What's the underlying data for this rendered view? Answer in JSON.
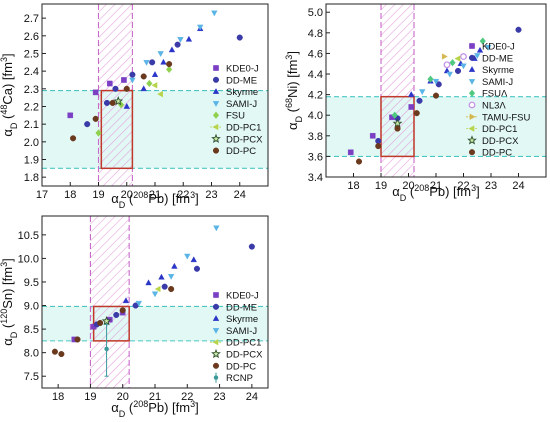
{
  "figure": {
    "description_visible": ""
  },
  "colors": {
    "KDE0-J": "#7b3fc4",
    "DD-ME": "#3a3aa8",
    "Skyrme": "#2b36c8",
    "SAMI-J": "#5ab4e6",
    "FSU": "#8fd14f",
    "FSUΛ": "#4fc97f",
    "NL3Λ": "#c48ae8",
    "TAMU-FSU": "#d4b84f",
    "DD-PC1": "#b8d44a",
    "DD-PCX": "#2f6b2f",
    "DD-PC": "#6b3a1e",
    "RCNP": "#3a9a9a",
    "band_fill": "#c8f2ec",
    "band_line": "#49c7c2",
    "hatch": "#e39bd8",
    "box": "#c0392b"
  },
  "chart_data": [
    {
      "id": "ca48",
      "type": "scatter",
      "xlabel": "α_D (208Pb) [fm³]",
      "ylabel": "α_D (48Ca) [fm³]",
      "xlim": [
        17,
        25
      ],
      "ylim": [
        1.75,
        2.78
      ],
      "xticks": [
        "17",
        "18",
        "19",
        "20",
        "21",
        "22",
        "23",
        "24"
      ],
      "yticks": [
        "1.8",
        "1.9",
        "2.0",
        "2.1",
        "2.2",
        "2.3",
        "2.4",
        "2.5",
        "2.6",
        "2.7"
      ],
      "band_y": [
        1.85,
        2.29
      ],
      "band_x": [
        19.0,
        20.2
      ],
      "box": {
        "x": [
          19.1,
          20.2
        ],
        "y": [
          1.85,
          2.29
        ]
      },
      "series": [
        {
          "name": "KDE0-J",
          "marker": "square",
          "points": [
            [
              18.0,
              2.15
            ],
            [
              18.9,
              2.28
            ],
            [
              19.4,
              2.33
            ],
            [
              19.9,
              2.35
            ]
          ]
        },
        {
          "name": "DD-ME",
          "marker": "circle",
          "points": [
            [
              18.6,
              2.1
            ],
            [
              19.3,
              2.22
            ],
            [
              19.6,
              2.3
            ],
            [
              20.2,
              2.38
            ],
            [
              20.9,
              2.45
            ],
            [
              21.8,
              2.55
            ],
            [
              24.0,
              2.59
            ]
          ]
        },
        {
          "name": "Skyrme",
          "marker": "triangle-up",
          "points": [
            [
              20.0,
              2.2
            ],
            [
              20.6,
              2.3
            ],
            [
              21.0,
              2.38
            ],
            [
              21.3,
              2.45
            ],
            [
              21.6,
              2.52
            ],
            [
              22.2,
              2.58
            ],
            [
              22.6,
              2.64
            ]
          ]
        },
        {
          "name": "SAMI-J",
          "marker": "triangle-down",
          "points": [
            [
              20.2,
              2.35
            ],
            [
              20.7,
              2.45
            ],
            [
              21.2,
              2.5
            ],
            [
              21.9,
              2.58
            ],
            [
              22.6,
              2.65
            ],
            [
              23.1,
              2.73
            ]
          ]
        },
        {
          "name": "FSU",
          "marker": "diamond",
          "points": [
            [
              19.0,
              2.05
            ],
            [
              19.8,
              2.21
            ],
            [
              20.8,
              2.33
            ],
            [
              21.5,
              2.41
            ]
          ]
        },
        {
          "name": "DD-PC1",
          "marker": "triangle-left",
          "points": [
            [
              21.2,
              2.27
            ],
            [
              21.0,
              2.32
            ]
          ]
        },
        {
          "name": "DD-PCX",
          "marker": "star",
          "points": [
            [
              19.7,
              2.23
            ]
          ]
        },
        {
          "name": "DD-PC",
          "marker": "circle",
          "points": [
            [
              18.1,
              2.02
            ],
            [
              18.9,
              2.13
            ],
            [
              19.5,
              2.22
            ],
            [
              20.0,
              2.3
            ],
            [
              20.6,
              2.37
            ],
            [
              21.5,
              2.44
            ]
          ]
        }
      ]
    },
    {
      "id": "ni68",
      "type": "scatter",
      "xlabel": "α_D (208Pb) [fm³]",
      "ylabel": "α_D (68Ni) [fm³]",
      "xlim": [
        17,
        25
      ],
      "ylim": [
        3.4,
        5.08
      ],
      "xticks": [
        "18",
        "19",
        "20",
        "21",
        "22",
        "23",
        "24"
      ],
      "yticks": [
        "3.4",
        "3.6",
        "3.8",
        "4.0",
        "4.2",
        "4.4",
        "4.6",
        "4.8",
        "5.0"
      ],
      "band_y": [
        3.6,
        4.18
      ],
      "band_x": [
        19.0,
        20.2
      ],
      "box": {
        "x": [
          19.0,
          20.2
        ],
        "y": [
          3.6,
          4.18
        ]
      },
      "series": [
        {
          "name": "KDE0-J",
          "marker": "square",
          "points": [
            [
              17.9,
              3.64
            ],
            [
              18.7,
              3.8
            ],
            [
              19.4,
              3.98
            ],
            [
              20.1,
              4.08
            ]
          ]
        },
        {
          "name": "DD-ME",
          "marker": "circle",
          "points": [
            [
              18.9,
              3.75
            ],
            [
              19.6,
              3.97
            ],
            [
              20.4,
              4.14
            ],
            [
              21.1,
              4.3
            ],
            [
              21.8,
              4.43
            ],
            [
              24.0,
              4.83
            ]
          ]
        },
        {
          "name": "Skyrme",
          "marker": "triangle-up",
          "points": [
            [
              20.1,
              4.2
            ],
            [
              20.8,
              4.33
            ],
            [
              21.4,
              4.43
            ],
            [
              21.9,
              4.5
            ],
            [
              22.4,
              4.55
            ],
            [
              22.6,
              4.63
            ]
          ]
        },
        {
          "name": "SAMI-J",
          "marker": "triangle-down",
          "points": [
            [
              20.5,
              4.23
            ],
            [
              21.0,
              4.33
            ],
            [
              21.5,
              4.4
            ],
            [
              22.0,
              4.48
            ],
            [
              22.5,
              4.58
            ],
            [
              22.9,
              4.66
            ]
          ]
        },
        {
          "name": "FSUΛ",
          "marker": "diamond",
          "points": [
            [
              19.5,
              4.0
            ],
            [
              20.8,
              4.35
            ],
            [
              21.6,
              4.51
            ],
            [
              22.7,
              4.72
            ]
          ]
        },
        {
          "name": "NL3Λ",
          "marker": "circle-open",
          "points": [
            [
              21.4,
              4.49
            ],
            [
              22.0,
              4.57
            ]
          ]
        },
        {
          "name": "TAMU-FSU",
          "marker": "triangle-right",
          "points": [
            [
              21.3,
              4.57
            ]
          ]
        },
        {
          "name": "DD-PC1",
          "marker": "triangle-left",
          "points": [
            [
              21.8,
              4.55
            ]
          ]
        },
        {
          "name": "DD-PCX",
          "marker": "star",
          "points": [
            [
              19.6,
              3.92
            ]
          ]
        },
        {
          "name": "DD-PC",
          "marker": "circle",
          "points": [
            [
              18.2,
              3.55
            ],
            [
              18.9,
              3.7
            ],
            [
              19.6,
              3.87
            ],
            [
              20.3,
              4.02
            ],
            [
              21.0,
              4.19
            ]
          ]
        }
      ]
    },
    {
      "id": "sn120",
      "type": "scatter",
      "xlabel": "α_D (208Pb) [fm³]",
      "ylabel": "α_D (120Sn) [fm³]",
      "xlim": [
        17.5,
        24.5
      ],
      "ylim": [
        7.25,
        10.9
      ],
      "xticks": [
        "18",
        "19",
        "20",
        "21",
        "22",
        "23",
        "24"
      ],
      "yticks": [
        "7.5",
        "8.0",
        "8.5",
        "9.0",
        "9.5",
        "10.0",
        "10.5"
      ],
      "band_y": [
        8.25,
        8.98
      ],
      "band_x": [
        19.0,
        20.2
      ],
      "box": {
        "x": [
          19.1,
          20.2
        ],
        "y": [
          8.25,
          8.98
        ]
      },
      "series": [
        {
          "name": "KDE0-J",
          "marker": "square",
          "points": [
            [
              18.5,
              8.28
            ],
            [
              19.1,
              8.55
            ],
            [
              19.6,
              8.7
            ],
            [
              20.0,
              8.85
            ]
          ]
        },
        {
          "name": "DD-ME",
          "marker": "circle",
          "points": [
            [
              19.2,
              8.6
            ],
            [
              19.8,
              8.8
            ],
            [
              20.4,
              9.0
            ],
            [
              21.3,
              9.4
            ],
            [
              22.3,
              9.78
            ],
            [
              24.0,
              10.25
            ]
          ]
        },
        {
          "name": "Skyrme",
          "marker": "triangle-up",
          "points": [
            [
              20.1,
              9.1
            ],
            [
              20.8,
              9.48
            ],
            [
              21.2,
              9.6
            ],
            [
              21.6,
              9.83
            ],
            [
              22.2,
              9.97
            ]
          ]
        },
        {
          "name": "SAMI-J",
          "marker": "triangle-down",
          "points": [
            [
              20.5,
              9.05
            ],
            [
              21.0,
              9.25
            ],
            [
              21.5,
              9.62
            ],
            [
              22.0,
              10.05
            ],
            [
              22.9,
              10.65
            ]
          ]
        },
        {
          "name": "DD-PC1",
          "marker": "triangle-left",
          "points": [
            [
              21.1,
              9.35
            ]
          ]
        },
        {
          "name": "DD-PCX",
          "marker": "star",
          "points": [
            [
              19.5,
              8.67
            ]
          ]
        },
        {
          "name": "DD-PC",
          "marker": "circle",
          "points": [
            [
              17.9,
              8.02
            ],
            [
              18.1,
              7.97
            ],
            [
              18.6,
              8.28
            ],
            [
              19.3,
              8.63
            ],
            [
              20.0,
              8.9
            ],
            [
              21.5,
              9.35
            ]
          ]
        },
        {
          "name": "RCNP",
          "marker": "circle-small",
          "points": [
            [
              19.5,
              8.08
            ]
          ],
          "error_y": [
            [
              7.5,
              8.6
            ]
          ]
        }
      ]
    }
  ]
}
